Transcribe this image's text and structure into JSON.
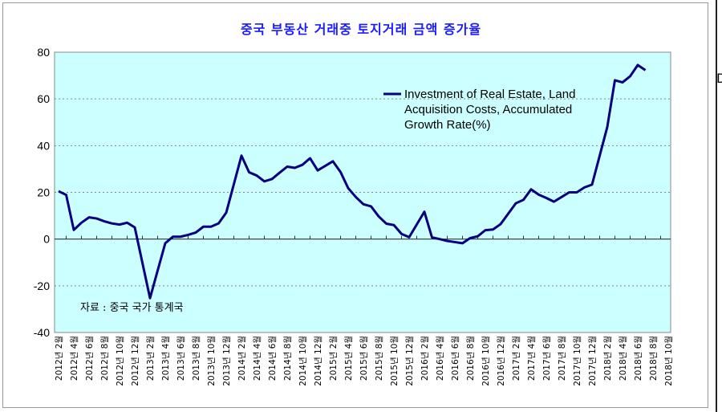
{
  "edge_char": "D",
  "chart_data": {
    "type": "line",
    "title": "중국 부동산 거래중 토지거래 금액 증가율",
    "xlabel": "",
    "ylabel": "",
    "ylim": [
      -40,
      80
    ],
    "yticks": [
      -40,
      -20,
      0,
      20,
      40,
      60,
      80
    ],
    "grid": "horizontal dotted",
    "legend_position": "top-right",
    "source_note": "자료 : 중국 국가 통계국",
    "colors": {
      "line": "#000080",
      "plot_bg": "#ccffff",
      "title": "#1a1aff"
    },
    "xtick_labels": [
      "2012년 2월",
      "2012년 4월",
      "2012년 6월",
      "2012년 8월",
      "2012년 10월",
      "2012년 12월",
      "2013년 2월",
      "2013년 4월",
      "2013년 6월",
      "2013년 8월",
      "2013년 10월",
      "2013년 12월",
      "2014년 2월",
      "2014년 4월",
      "2014년 6월",
      "2014년 8월",
      "2014년 10월",
      "2014년 12월",
      "2015년 2월",
      "2015년 4월",
      "2015년 6월",
      "2015년 8월",
      "2015년 10월",
      "2015년 12월",
      "2016년 2월",
      "2016년 4월",
      "2016년 6월",
      "2016년 8월",
      "2016년 10월",
      "2016년 12월",
      "2017년 2월",
      "2017년 4월",
      "2017년 6월",
      "2017년 8월",
      "2017년 10월",
      "2017년 12월",
      "2018년 2월",
      "2018년 4월",
      "2018년 6월",
      "2018년 8월",
      "2018년 10월"
    ],
    "series": [
      {
        "name": "Investment of Real Estate, Land Acquisition Costs, Accumulated Growth Rate(%)",
        "legend_lines": [
          "Investment of Real Estate, Land",
          "Acquisition Costs, Accumulated",
          "Growth Rate(%)"
        ],
        "x": [
          "2012-02",
          "2012-03",
          "2012-04",
          "2012-05",
          "2012-06",
          "2012-07",
          "2012-08",
          "2012-09",
          "2012-10",
          "2012-11",
          "2012-12",
          "2013-02",
          "2013-03",
          "2013-04",
          "2013-05",
          "2013-06",
          "2013-07",
          "2013-08",
          "2013-09",
          "2013-10",
          "2013-11",
          "2013-12",
          "2014-02",
          "2014-03",
          "2014-04",
          "2014-05",
          "2014-06",
          "2014-07",
          "2014-08",
          "2014-09",
          "2014-10",
          "2014-11",
          "2014-12",
          "2015-02",
          "2015-03",
          "2015-04",
          "2015-05",
          "2015-06",
          "2015-07",
          "2015-08",
          "2015-09",
          "2015-10",
          "2015-11",
          "2015-12",
          "2016-02",
          "2016-03",
          "2016-04",
          "2016-05",
          "2016-06",
          "2016-07",
          "2016-08",
          "2016-09",
          "2016-10",
          "2016-11",
          "2016-12",
          "2017-02",
          "2017-03",
          "2017-04",
          "2017-05",
          "2017-06",
          "2017-07",
          "2017-08",
          "2017-09",
          "2017-10",
          "2017-11",
          "2017-12",
          "2018-02",
          "2018-03",
          "2018-04",
          "2018-05",
          "2018-06",
          "2018-07"
        ],
        "values": [
          20.5,
          18.9,
          3.9,
          7.0,
          9.3,
          8.8,
          7.6,
          6.7,
          6.2,
          7.0,
          5.0,
          -25.3,
          -13.5,
          -1.8,
          1.0,
          1.0,
          1.8,
          2.8,
          5.3,
          5.3,
          6.7,
          11.3,
          35.7,
          28.6,
          27.2,
          24.7,
          25.7,
          28.4,
          31.0,
          30.5,
          31.8,
          34.6,
          29.4,
          33.3,
          28.7,
          21.8,
          18.0,
          14.9,
          14.0,
          9.7,
          6.6,
          6.0,
          2.2,
          0.8,
          11.7,
          0.7,
          0.0,
          -0.8,
          -1.3,
          -1.8,
          0.4,
          1.2,
          3.8,
          4.1,
          6.4,
          15.3,
          16.8,
          21.3,
          19.0,
          17.6,
          16.0,
          18.0,
          20.0,
          20.0,
          22.1,
          23.3,
          48.0,
          68.0,
          67.1,
          69.7,
          74.5,
          72.3
        ]
      }
    ]
  }
}
